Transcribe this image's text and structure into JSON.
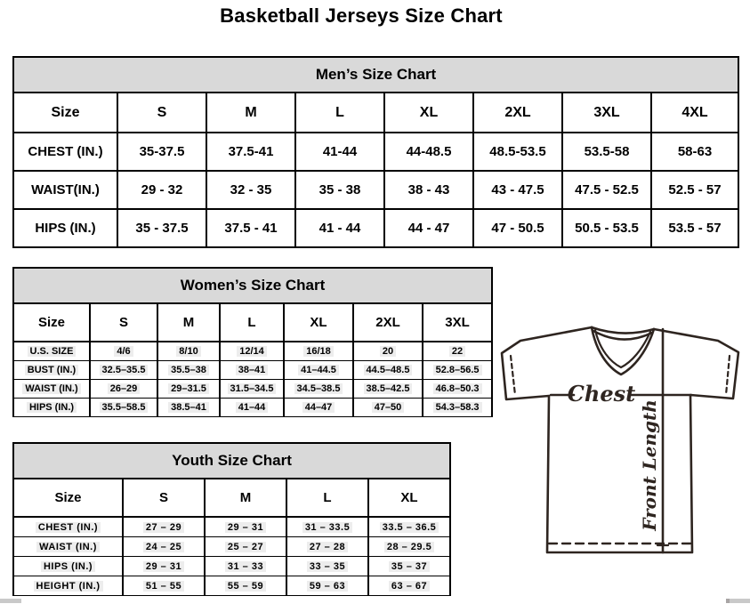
{
  "page_title": "Basketball Jerseys Size Chart",
  "tables": {
    "men": {
      "title": "Men’s Size Chart",
      "columns": [
        "Size",
        "S",
        "M",
        "L",
        "XL",
        "2XL",
        "3XL",
        "4XL"
      ],
      "rows": [
        {
          "label": "CHEST (IN.)",
          "values": [
            "35-37.5",
            "37.5-41",
            "41-44",
            "44-48.5",
            "48.5-53.5",
            "53.5-58",
            "58-63"
          ]
        },
        {
          "label": "WAIST(IN.)",
          "values": [
            "29 - 32",
            "32 - 35",
            "35 - 38",
            "38 - 43",
            "43 - 47.5",
            "47.5 - 52.5",
            "52.5 - 57"
          ]
        },
        {
          "label": "HIPS (IN.)",
          "values": [
            "35 - 37.5",
            "37.5 - 41",
            "41 - 44",
            "44 - 47",
            "47 - 50.5",
            "50.5 - 53.5",
            "53.5 - 57"
          ]
        }
      ]
    },
    "women": {
      "title": "Women’s Size Chart",
      "columns": [
        "Size",
        "S",
        "M",
        "L",
        "XL",
        "2XL",
        "3XL"
      ],
      "rows": [
        {
          "label": "U.S. SIZE",
          "values": [
            "4/6",
            "8/10",
            "12/14",
            "16/18",
            "20",
            "22"
          ]
        },
        {
          "label": "BUST (IN.)",
          "values": [
            "32.5–35.5",
            "35.5–38",
            "38–41",
            "41–44.5",
            "44.5–48.5",
            "52.8–56.5"
          ]
        },
        {
          "label": "WAIST (IN.)",
          "values": [
            "26–29",
            "29–31.5",
            "31.5–34.5",
            "34.5–38.5",
            "38.5–42.5",
            "46.8–50.3"
          ]
        },
        {
          "label": "HIPS (IN.)",
          "values": [
            "35.5–58.5",
            "38.5–41",
            "41–44",
            "44–47",
            "47–50",
            "54.3–58.3"
          ]
        }
      ]
    },
    "youth": {
      "title": "Youth Size Chart",
      "columns": [
        "Size",
        "S",
        "M",
        "L",
        "XL"
      ],
      "rows": [
        {
          "label": "CHEST (IN.)",
          "values": [
            "27 – 29",
            "29 – 31",
            "31 – 33.5",
            "33.5 – 36.5"
          ]
        },
        {
          "label": "WAIST (IN.)",
          "values": [
            "24 – 25",
            "25 – 27",
            "27 – 28",
            "28 – 29.5"
          ]
        },
        {
          "label": "HIPS (IN.)",
          "values": [
            "29 – 31",
            "31 – 33",
            "33 – 35",
            "35 – 37"
          ]
        },
        {
          "label": "HEIGHT (IN.)",
          "values": [
            "51 – 55",
            "55 – 59",
            "59 – 63",
            "63 – 67"
          ]
        }
      ]
    }
  },
  "diagram": {
    "chest_label": "Chest",
    "front_length_label": "Front Length"
  },
  "colors": {
    "table_header_bg": "#d9d9d9",
    "table_border": "#000000",
    "diagram_line": "#2e2520"
  }
}
